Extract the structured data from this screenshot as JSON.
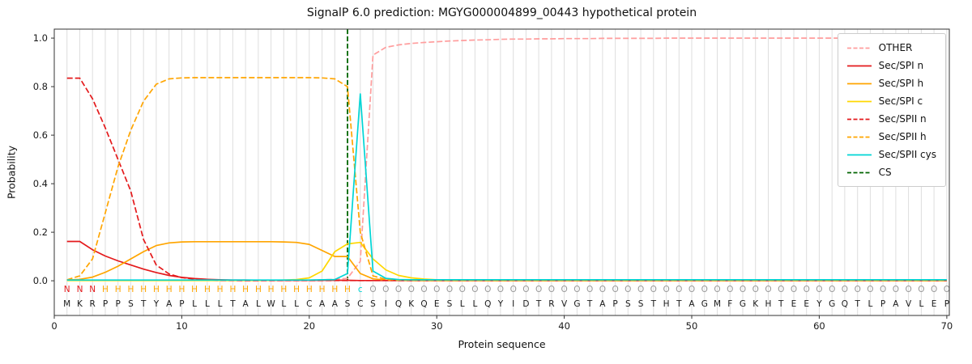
{
  "title": "SignalP 6.0 prediction: MGYG000004899_00443 hypothetical protein",
  "chart_data": {
    "type": "line",
    "xlabel": "Protein sequence",
    "ylabel": "Probability",
    "xticks": [
      0,
      10,
      20,
      30,
      40,
      50,
      60,
      70
    ],
    "yticks": [
      "0.0",
      "0.2",
      "0.4",
      "0.6",
      "0.8",
      "1.0"
    ],
    "xlim": [
      0,
      70.2
    ],
    "ylim": [
      -0.143,
      1.037
    ],
    "grid": "vertical gridline at every residue position 1-70",
    "legend_position": "upper right inside axes",
    "colors": {
      "grid": "#dedede",
      "axis": "#333333",
      "tick_text": "#1a1a1a",
      "sequence_text": "#1a1a1a"
    },
    "cs": {
      "label": "CS",
      "color": "#006400",
      "position": 23
    },
    "sequence": "MKRPPSTYAPLLLTALWLLCAASCSIQKQESLLQYIDTRVGTAPSSTHTAGMFGKHTEEYGQTLPAVLEP",
    "sequence_regions": "NNNHHHHHHHHHHHHHHHHHHHHcOOOOOOOOOOOOOOOOOOOOOOOOOOOOOOOOOOOOOOOOOOOOOO",
    "region_colors": {
      "N": "#e41a1c",
      "H": "#ffa500",
      "c": "#00d5d5",
      "O": "#999999"
    },
    "series": [
      {
        "label": "OTHER",
        "color": "#ff9d9d",
        "dashed": true,
        "values": [
          0.002,
          0.002,
          0.002,
          0.002,
          0.002,
          0.002,
          0.002,
          0.002,
          0.002,
          0.002,
          0.002,
          0.002,
          0.002,
          0.002,
          0.002,
          0.002,
          0.002,
          0.002,
          0.002,
          0.003,
          0.004,
          0.006,
          0.01,
          0.08,
          0.93,
          0.962,
          0.972,
          0.978,
          0.982,
          0.985,
          0.988,
          0.99,
          0.992,
          0.993,
          0.995,
          0.996,
          0.996,
          0.997,
          0.997,
          0.998,
          0.998,
          0.998,
          0.999,
          0.999,
          0.999,
          0.999,
          0.999,
          1.0,
          1.0,
          1.0,
          1.0,
          1.0,
          1.0,
          1.0,
          1.0,
          1.0,
          1.0,
          1.0,
          1.0,
          1.0,
          1.0,
          1.0,
          1.0,
          1.0,
          1.0,
          1.0,
          1.0,
          1.0,
          1.0,
          1.0
        ]
      },
      {
        "label": "Sec/SPI n",
        "color": "#e41a1c",
        "dashed": false,
        "values": [
          0.162,
          0.162,
          0.128,
          0.102,
          0.082,
          0.065,
          0.048,
          0.034,
          0.022,
          0.014,
          0.009,
          0.006,
          0.004,
          0.003,
          0.003,
          0.002,
          0.002,
          0.002,
          0.002,
          0.002,
          0.002,
          0.002,
          0.002,
          0.001,
          0.001,
          0.001,
          0.001,
          0.001,
          0.001,
          0.001,
          0.001,
          0.001,
          0.001,
          0.001,
          0.001,
          0.001,
          0.001,
          0.001,
          0.001,
          0.001,
          0.001,
          0.001,
          0.001,
          0.001,
          0.001,
          0.001,
          0.001,
          0.001,
          0.001,
          0.001,
          0.001,
          0.001,
          0.001,
          0.001,
          0.001,
          0.001,
          0.001,
          0.001,
          0.001,
          0.001,
          0.001,
          0.001,
          0.001,
          0.001,
          0.001,
          0.001,
          0.001,
          0.001,
          0.001,
          0.001
        ]
      },
      {
        "label": "Sec/SPI h",
        "color": "#ffa500",
        "dashed": false,
        "values": [
          0.003,
          0.006,
          0.015,
          0.035,
          0.06,
          0.09,
          0.12,
          0.145,
          0.156,
          0.16,
          0.161,
          0.161,
          0.161,
          0.161,
          0.161,
          0.161,
          0.161,
          0.16,
          0.158,
          0.15,
          0.125,
          0.1,
          0.1,
          0.03,
          0.008,
          0.003,
          0.002,
          0.001,
          0.001,
          0.001,
          0.001,
          0.001,
          0.001,
          0.001,
          0.001,
          0.001,
          0.001,
          0.001,
          0.001,
          0.001,
          0.001,
          0.001,
          0.001,
          0.001,
          0.001,
          0.001,
          0.001,
          0.001,
          0.001,
          0.001,
          0.001,
          0.001,
          0.001,
          0.001,
          0.001,
          0.001,
          0.001,
          0.001,
          0.001,
          0.001,
          0.001,
          0.001,
          0.001,
          0.001,
          0.001,
          0.001,
          0.001,
          0.001,
          0.001,
          0.001
        ]
      },
      {
        "label": "Sec/SPI c",
        "color": "#ffd700",
        "dashed": false,
        "values": [
          0.001,
          0.001,
          0.001,
          0.001,
          0.001,
          0.001,
          0.001,
          0.001,
          0.001,
          0.001,
          0.001,
          0.001,
          0.001,
          0.001,
          0.001,
          0.001,
          0.002,
          0.003,
          0.005,
          0.012,
          0.04,
          0.12,
          0.152,
          0.158,
          0.09,
          0.045,
          0.022,
          0.012,
          0.007,
          0.004,
          0.003,
          0.002,
          0.002,
          0.001,
          0.001,
          0.001,
          0.001,
          0.001,
          0.001,
          0.001,
          0.001,
          0.001,
          0.001,
          0.001,
          0.001,
          0.001,
          0.001,
          0.001,
          0.001,
          0.001,
          0.001,
          0.001,
          0.001,
          0.001,
          0.001,
          0.001,
          0.001,
          0.001,
          0.001,
          0.001,
          0.001,
          0.001,
          0.001,
          0.001,
          0.001,
          0.001,
          0.001,
          0.001,
          0.001,
          0.001
        ]
      },
      {
        "label": "Sec/SPII n",
        "color": "#e41a1c",
        "dashed": true,
        "values": [
          0.835,
          0.835,
          0.75,
          0.63,
          0.5,
          0.37,
          0.17,
          0.065,
          0.028,
          0.013,
          0.007,
          0.004,
          0.002,
          0.002,
          0.001,
          0.001,
          0.001,
          0.001,
          0.001,
          0.001,
          0.001,
          0.001,
          0.001,
          0.001,
          0.001,
          0.001,
          0.001,
          0.001,
          0.001,
          0.001,
          0.001,
          0.001,
          0.001,
          0.001,
          0.001,
          0.001,
          0.001,
          0.001,
          0.001,
          0.001,
          0.001,
          0.001,
          0.001,
          0.001,
          0.001,
          0.001,
          0.001,
          0.001,
          0.001,
          0.001,
          0.001,
          0.001,
          0.001,
          0.001,
          0.001,
          0.001,
          0.001,
          0.001,
          0.001,
          0.001,
          0.001,
          0.001,
          0.001,
          0.001,
          0.001,
          0.001,
          0.001,
          0.001,
          0.001,
          0.001
        ]
      },
      {
        "label": "Sec/SPII h",
        "color": "#ffa500",
        "dashed": true,
        "values": [
          0.004,
          0.02,
          0.09,
          0.28,
          0.47,
          0.62,
          0.74,
          0.81,
          0.832,
          0.836,
          0.837,
          0.837,
          0.837,
          0.837,
          0.837,
          0.837,
          0.837,
          0.837,
          0.837,
          0.837,
          0.836,
          0.832,
          0.8,
          0.2,
          0.02,
          0.006,
          0.003,
          0.002,
          0.001,
          0.001,
          0.001,
          0.001,
          0.001,
          0.001,
          0.001,
          0.001,
          0.001,
          0.001,
          0.001,
          0.001,
          0.001,
          0.001,
          0.001,
          0.001,
          0.001,
          0.001,
          0.001,
          0.001,
          0.001,
          0.001,
          0.001,
          0.001,
          0.001,
          0.001,
          0.001,
          0.001,
          0.001,
          0.001,
          0.001,
          0.001,
          0.001,
          0.001,
          0.001,
          0.001,
          0.001,
          0.001,
          0.001,
          0.001,
          0.001,
          0.001
        ]
      },
      {
        "label": "Sec/SPII cys",
        "color": "#00d5d5",
        "dashed": false,
        "values": [
          0.003,
          0.003,
          0.003,
          0.003,
          0.003,
          0.003,
          0.003,
          0.003,
          0.003,
          0.003,
          0.003,
          0.003,
          0.003,
          0.003,
          0.003,
          0.003,
          0.003,
          0.003,
          0.003,
          0.003,
          0.004,
          0.005,
          0.03,
          0.77,
          0.04,
          0.01,
          0.005,
          0.004,
          0.004,
          0.004,
          0.004,
          0.004,
          0.004,
          0.004,
          0.004,
          0.004,
          0.004,
          0.004,
          0.004,
          0.004,
          0.004,
          0.004,
          0.004,
          0.004,
          0.004,
          0.004,
          0.004,
          0.004,
          0.004,
          0.004,
          0.004,
          0.004,
          0.004,
          0.004,
          0.004,
          0.004,
          0.004,
          0.004,
          0.004,
          0.004,
          0.004,
          0.004,
          0.004,
          0.004,
          0.004,
          0.004,
          0.004,
          0.004,
          0.004,
          0.004
        ]
      }
    ]
  }
}
